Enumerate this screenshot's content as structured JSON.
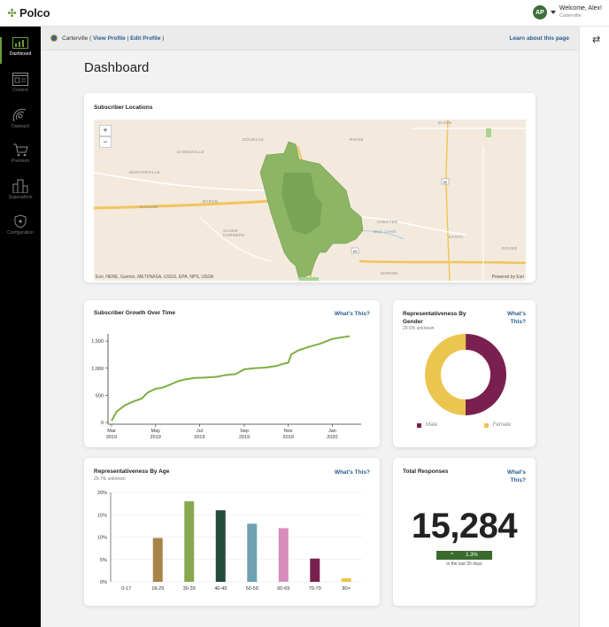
{
  "brand": {
    "name": "Polco",
    "accent": "#6a9c3a"
  },
  "header": {
    "avatar_initials": "AP",
    "welcome": "Welcome, Alex!",
    "city": "Carterville"
  },
  "sidebar": {
    "items": [
      {
        "label": "Dashboard",
        "icon": "dashboard-icon",
        "active": true
      },
      {
        "label": "Content",
        "icon": "content-icon"
      },
      {
        "label": "Outreach",
        "icon": "outreach-icon"
      },
      {
        "label": "Premium",
        "icon": "premium-cart-icon"
      },
      {
        "label": "Superadmin",
        "icon": "superadmin-buildings-icon"
      },
      {
        "label": "Configuration",
        "icon": "configuration-shield-icon"
      }
    ]
  },
  "breadcrumb": {
    "city": "Carterville",
    "open_paren": "(",
    "view_profile": "View Profile",
    "separator": "|",
    "edit_profile": "Edit Profile",
    "close_paren": ")",
    "learn_link": "Learn about this page"
  },
  "page": {
    "title": "Dashboard"
  },
  "map": {
    "title": "Subscriber Locations",
    "zoom_in": "+",
    "zoom_out": "−",
    "labels": [
      "DOUGLAS",
      "DANESVILLE",
      "RINGE",
      "ELGIN",
      "MANTORVILLE",
      "KASSON",
      "BYRON",
      "SALEM CORNERS",
      "CHESTER",
      "EYOTA",
      "DOVER",
      "MARION",
      "Bear Creek"
    ],
    "road_shields": [
      "63",
      "52"
    ],
    "attribution": "Esri, HERE, Garmin, METI/NASA, USGS, EPA, NPS, USDA",
    "powered_by": "Powered by Esri"
  },
  "growth": {
    "title": "Subscriber Growth Over Time",
    "whats_this": "What's This?",
    "y_ticks": [
      "1,500",
      "1,000",
      "500",
      "0"
    ],
    "x_ticks": [
      [
        "Mar",
        "2019"
      ],
      [
        "May",
        "2019"
      ],
      [
        "Jul",
        "2019"
      ],
      [
        "Sep",
        "2019"
      ],
      [
        "Nov",
        "2019"
      ],
      [
        "Jan",
        "2020"
      ]
    ]
  },
  "gender": {
    "title_line1": "Representativeness By",
    "title_line2": "Gender",
    "whats_line1": "What's",
    "whats_line2": "This?",
    "unknown_note": "29.5% unknown",
    "male_label": "Male",
    "female_label": "Female",
    "male_color": "#7a2050",
    "female_color": "#ebc54f"
  },
  "age": {
    "title": "Representativeness By Age",
    "whats_this": "What's This?",
    "unknown_note": "29.7% unknown",
    "y_ticks": [
      "20%",
      "15%",
      "10%",
      "5%",
      "0%"
    ]
  },
  "responses": {
    "title": "Total Responses",
    "whats_line1": "What's",
    "whats_line2": "This?",
    "total": "15,284",
    "change": "1.3%",
    "change_arrow": "^",
    "period": "in the last 30 days"
  },
  "chart_data": [
    {
      "type": "line",
      "title": "Subscriber Growth Over Time",
      "x": [
        "2019-03-01",
        "2019-03-08",
        "2019-03-20",
        "2019-04-01",
        "2019-04-12",
        "2019-04-20",
        "2019-05-01",
        "2019-05-10",
        "2019-05-20",
        "2019-06-01",
        "2019-06-10",
        "2019-06-25",
        "2019-07-10",
        "2019-07-25",
        "2019-08-01",
        "2019-08-10",
        "2019-08-20",
        "2019-09-01",
        "2019-09-15",
        "2019-09-30",
        "2019-10-15",
        "2019-10-25",
        "2019-11-01",
        "2019-11-05",
        "2019-11-15",
        "2019-12-01",
        "2019-12-15",
        "2020-01-01",
        "2020-01-15",
        "2020-01-25"
      ],
      "series": [
        {
          "values": [
            30,
            200,
            320,
            390,
            440,
            550,
            620,
            640,
            690,
            760,
            790,
            820,
            830,
            840,
            860,
            880,
            890,
            980,
            1000,
            1010,
            1040,
            1080,
            1100,
            1250,
            1330,
            1400,
            1450,
            1540,
            1570,
            1590
          ],
          "color": "#7fae45"
        }
      ],
      "ylim": [
        0,
        1600
      ],
      "x_ticks": [
        "Mar 2019",
        "May 2019",
        "Jul 2019",
        "Sep 2019",
        "Nov 2019",
        "Jan 2020"
      ],
      "y_ticks": [
        0,
        500,
        1000,
        1500
      ],
      "grid": false
    },
    {
      "type": "pie",
      "title": "Representativeness By Gender",
      "subtitle": "29.5% unknown",
      "categories": [
        "Male",
        "Female"
      ],
      "values": [
        50,
        50
      ],
      "colors": [
        "#7a2050",
        "#ebc54f"
      ],
      "donut": true,
      "legend": "bottom"
    },
    {
      "type": "bar",
      "title": "Representativeness By Age",
      "subtitle": "29.7% unknown",
      "categories": [
        "0-17",
        "18-29",
        "30-39",
        "40-49",
        "50-59",
        "60-69",
        "70-79",
        "80+"
      ],
      "values": [
        0,
        9.8,
        18.0,
        16.0,
        13.0,
        12.0,
        5.2,
        0.8
      ],
      "colors": [
        "#cccccc",
        "#a8844a",
        "#88a84e",
        "#244a3c",
        "#6ea2b2",
        "#d88cbc",
        "#7a2050",
        "#ebc54f"
      ],
      "ylim": [
        0,
        20
      ],
      "y_ticks": [
        "0%",
        "5%",
        "10%",
        "15%",
        "20%"
      ],
      "grid": true
    }
  ]
}
